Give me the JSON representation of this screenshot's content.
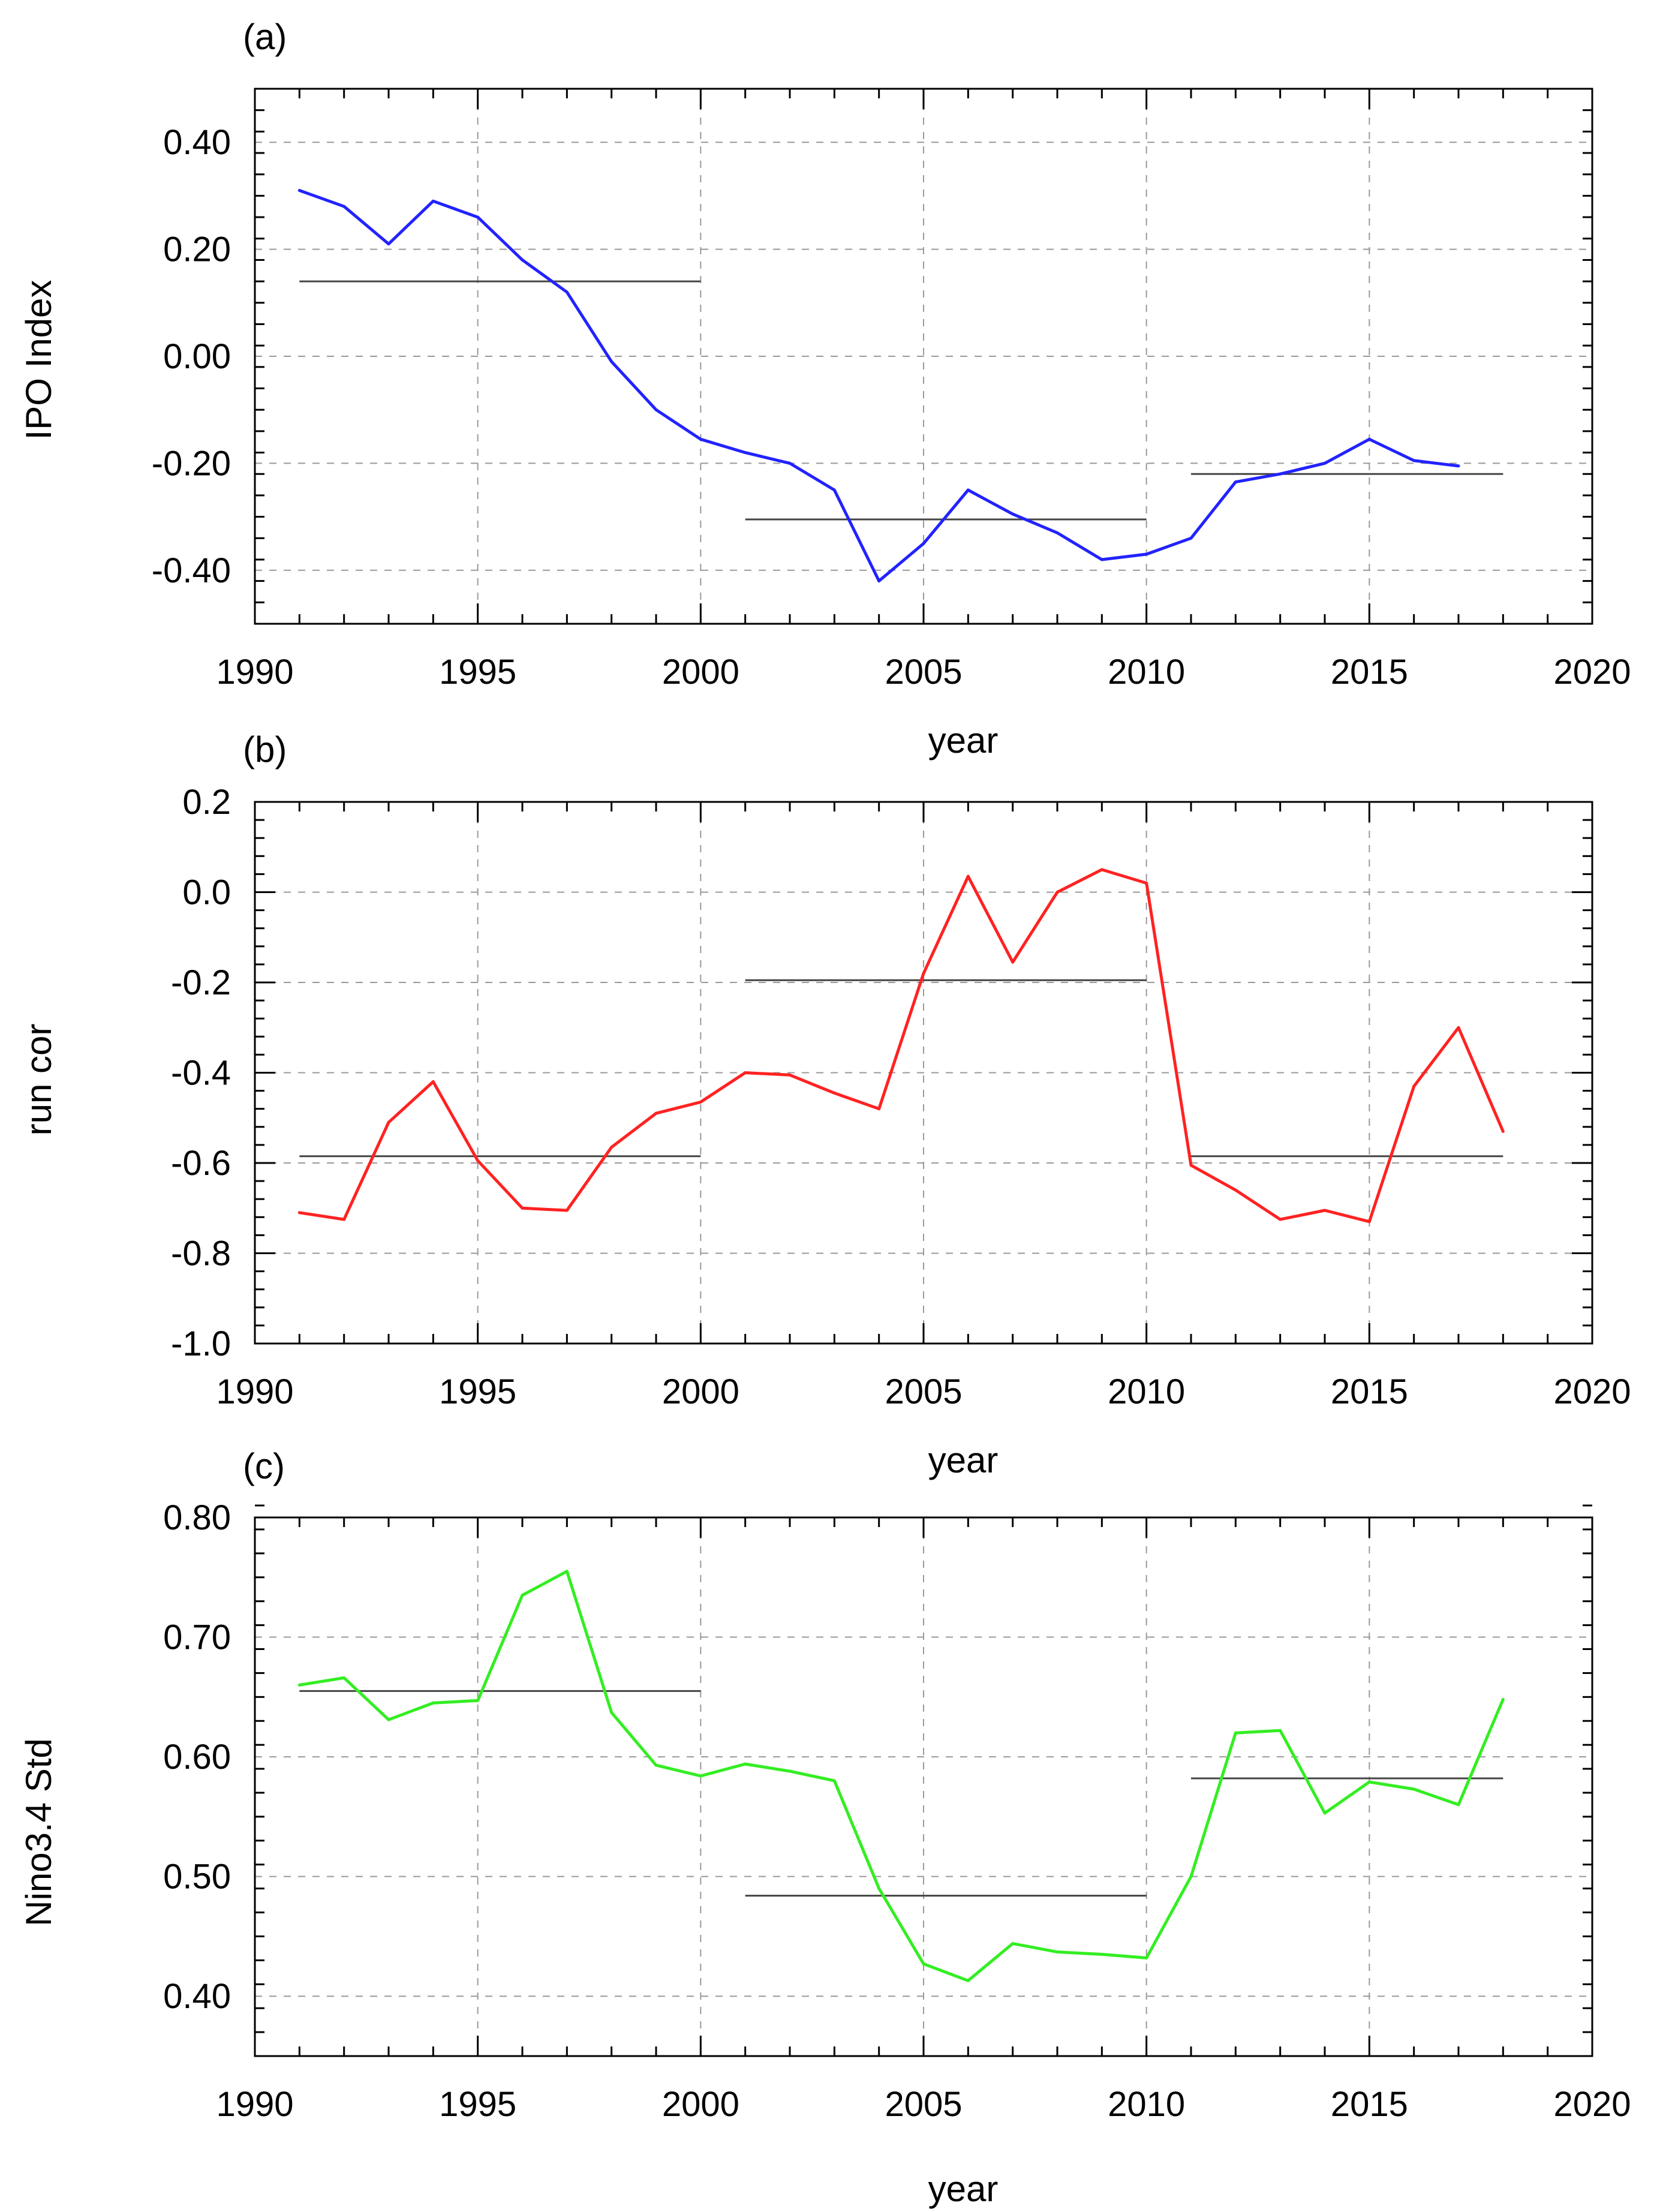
{
  "chart_data": [
    {
      "type": "line",
      "panel_label": "(a)",
      "xlabel": "year",
      "ylabel": "IPO Index",
      "xlim": [
        1990,
        2020
      ],
      "ylim": [
        -0.5,
        0.5
      ],
      "x_ticks": [
        1990,
        1995,
        2000,
        2005,
        2010,
        2015,
        2020
      ],
      "x_tick_labels": [
        "1990",
        "1995",
        "2000",
        "2005",
        "2010",
        "2015",
        "2020"
      ],
      "y_ticks": [
        -0.4,
        -0.2,
        0.0,
        0.2,
        0.4
      ],
      "y_tick_labels": [
        "-0.40",
        "-0.20",
        "0.00",
        "0.20",
        "0.40"
      ],
      "grid": "dashed",
      "series": [
        {
          "name": "IPO Index",
          "color": "#2222ff",
          "x": [
            1991,
            1992,
            1993,
            1994,
            1995,
            1996,
            1997,
            1998,
            1999,
            2000,
            2001,
            2002,
            2003,
            2004,
            2005,
            2006,
            2007,
            2008,
            2009,
            2010,
            2011,
            2012,
            2013,
            2014,
            2015,
            2016,
            2017
          ],
          "values": [
            0.31,
            0.28,
            0.21,
            0.29,
            0.26,
            0.18,
            0.12,
            -0.01,
            -0.1,
            -0.155,
            -0.18,
            -0.2,
            -0.25,
            -0.42,
            -0.35,
            -0.25,
            -0.295,
            -0.33,
            -0.38,
            -0.37,
            -0.34,
            -0.235,
            -0.22,
            -0.2,
            -0.155,
            -0.195,
            -0.205
          ]
        }
      ],
      "means": [
        {
          "x": [
            1991,
            2000
          ],
          "value": 0.14
        },
        {
          "x": [
            2001,
            2010
          ],
          "value": -0.305
        },
        {
          "x": [
            2011,
            2018
          ],
          "value": -0.22
        }
      ]
    },
    {
      "type": "line",
      "panel_label": "(b)",
      "xlabel": "year",
      "ylabel": "run cor",
      "xlim": [
        1990,
        2020
      ],
      "ylim": [
        -1.0,
        0.2
      ],
      "x_ticks": [
        1990,
        1995,
        2000,
        2005,
        2010,
        2015,
        2020
      ],
      "x_tick_labels": [
        "1990",
        "1995",
        "2000",
        "2005",
        "2010",
        "2015",
        "2020"
      ],
      "y_ticks": [
        -1.0,
        -0.8,
        -0.6,
        -0.4,
        -0.2,
        0.0,
        0.2
      ],
      "y_tick_labels": [
        "-1.0",
        "-0.8",
        "-0.6",
        "-0.4",
        "-0.2",
        "0.0",
        "0.2"
      ],
      "grid": "dashed",
      "series": [
        {
          "name": "run cor",
          "color": "#ff2222",
          "x": [
            1991,
            1992,
            1993,
            1994,
            1995,
            1996,
            1997,
            1998,
            1999,
            2000,
            2001,
            2002,
            2003,
            2004,
            2005,
            2006,
            2007,
            2008,
            2009,
            2010,
            2011,
            2012,
            2013,
            2014,
            2015,
            2016,
            2017,
            2018
          ],
          "values": [
            -0.71,
            -0.725,
            -0.51,
            -0.42,
            -0.595,
            -0.7,
            -0.705,
            -0.565,
            -0.49,
            -0.465,
            -0.4,
            -0.405,
            -0.445,
            -0.48,
            -0.18,
            0.035,
            -0.155,
            0.0,
            0.05,
            0.02,
            -0.605,
            -0.66,
            -0.725,
            -0.705,
            -0.73,
            -0.43,
            -0.3,
            -0.53
          ]
        }
      ],
      "means": [
        {
          "x": [
            1991,
            2000
          ],
          "value": -0.585
        },
        {
          "x": [
            2001,
            2010
          ],
          "value": -0.195
        },
        {
          "x": [
            2011,
            2018
          ],
          "value": -0.585
        }
      ]
    },
    {
      "type": "line",
      "panel_label": "(c)",
      "xlabel": "year",
      "ylabel": "Nino3.4 Std",
      "xlim": [
        1990,
        2020
      ],
      "ylim": [
        0.35,
        0.8
      ],
      "x_ticks": [
        1990,
        1995,
        2000,
        2005,
        2010,
        2015,
        2020
      ],
      "x_tick_labels": [
        "1990",
        "1995",
        "2000",
        "2005",
        "2010",
        "2015",
        "2020"
      ],
      "y_ticks": [
        0.4,
        0.5,
        0.6,
        0.7,
        0.8
      ],
      "y_tick_labels": [
        "0.40",
        "0.50",
        "0.60",
        "0.70",
        "0.80"
      ],
      "grid": "dashed",
      "series": [
        {
          "name": "Nino3.4 Std",
          "color": "#33ee22",
          "x": [
            1991,
            1992,
            1993,
            1994,
            1995,
            1996,
            1997,
            1998,
            1999,
            2000,
            2001,
            2002,
            2003,
            2004,
            2005,
            2006,
            2007,
            2008,
            2009,
            2010,
            2011,
            2012,
            2013,
            2014,
            2015,
            2016,
            2017,
            2018
          ],
          "values": [
            0.66,
            0.666,
            0.631,
            0.645,
            0.647,
            0.735,
            0.755,
            0.637,
            0.593,
            0.584,
            0.594,
            0.588,
            0.58,
            0.49,
            0.427,
            0.413,
            0.444,
            0.437,
            0.435,
            0.432,
            0.5,
            0.62,
            0.622,
            0.553,
            0.579,
            0.573,
            0.56,
            0.648
          ]
        }
      ],
      "means": [
        {
          "x": [
            1991,
            2000
          ],
          "value": 0.655
        },
        {
          "x": [
            2001,
            2010
          ],
          "value": 0.484
        },
        {
          "x": [
            2011,
            2018
          ],
          "value": 0.582
        }
      ]
    }
  ],
  "colors": {
    "axis": "#000000",
    "grid": "#999999",
    "mean_line": "#444444"
  }
}
